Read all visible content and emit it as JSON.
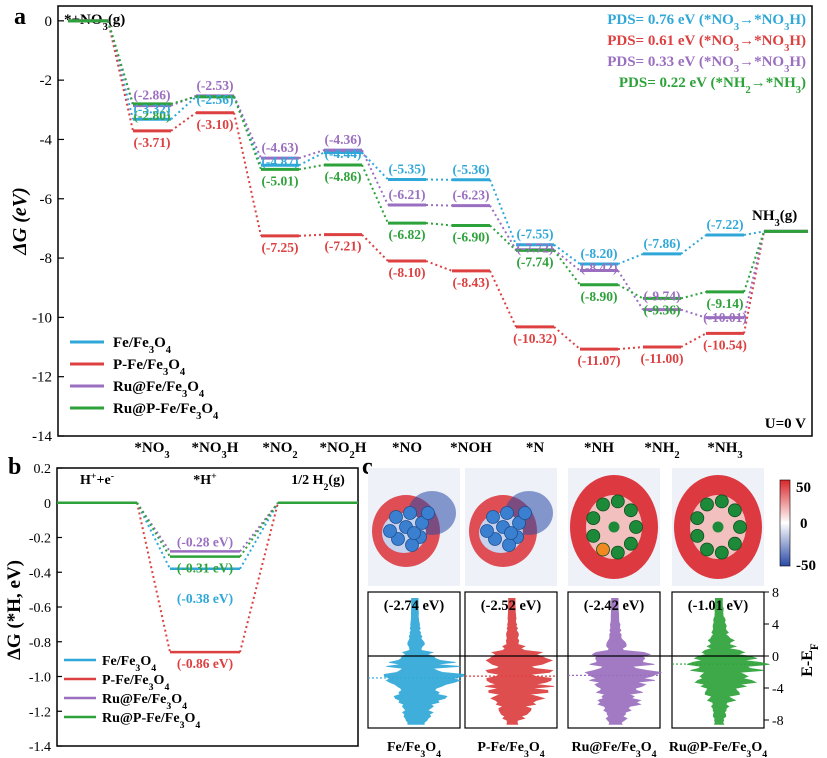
{
  "colors": {
    "fe": "#2fa8d9",
    "pfe": "#dd4040",
    "ru": "#9b6fc0",
    "rup": "#2ea23a",
    "axis": "#000000",
    "map_red": "#d9262b",
    "map_blue": "#2b4aa6",
    "bead_blue": "#3b7fd0",
    "bead_green": "#1d8a3a",
    "bead_orange": "#f08a20"
  },
  "panel_labels": {
    "a": "a",
    "b": "b",
    "c": "c"
  },
  "chart_data": [
    {
      "id": "panel-a",
      "type": "line",
      "title": "",
      "ylabel": "ΔG (eV)",
      "ylim": [
        -14,
        0.5
      ],
      "yticks": [
        0,
        -2,
        -4,
        -6,
        -8,
        -10,
        -12,
        -14
      ],
      "categories": [
        "*+NO3(g)",
        "*NO3",
        "*NO3H",
        "*NO2",
        "*NO2H",
        "*NO",
        "*NOH",
        "*N",
        "*NH",
        "*NH2",
        "*NH3",
        "NH3(g)"
      ],
      "category_labels": [
        "*NO₃",
        "*NO₃H",
        "*NO₂",
        "*NO₂H",
        "*NO",
        "*NOH",
        "*N",
        "*NH",
        "*NH₂",
        "*NH₃"
      ],
      "start_label": "*+NO₃(g)",
      "end_label": "NH₃(g)",
      "condition": "U=0 V",
      "pds": [
        {
          "series": "fe",
          "text": "PDS= 0.76 eV (*NO₃→*NO₃H)"
        },
        {
          "series": "pfe",
          "text": "PDS= 0.61 eV (*NO₃→*NO₃H)"
        },
        {
          "series": "ru",
          "text": "PDS= 0.33 eV (*NO₃→*NO₃H)"
        },
        {
          "series": "rup",
          "text": "PDS= 0.22 eV (*NH₂→*NH₃)"
        }
      ],
      "legend_position": "bottom-left",
      "series": [
        {
          "key": "fe",
          "name": "Fe/Fe₃O₄",
          "values": [
            0,
            -3.32,
            -2.56,
            -4.87,
            -4.44,
            -5.35,
            -5.36,
            -7.55,
            -8.2,
            -7.86,
            -7.22,
            -7.1
          ]
        },
        {
          "key": "pfe",
          "name": "P-Fe/Fe₃O₄",
          "values": [
            0,
            -3.71,
            -3.1,
            -7.25,
            -7.21,
            -8.1,
            -8.43,
            -10.32,
            -11.07,
            -11.0,
            -10.54,
            -7.1
          ]
        },
        {
          "key": "ru",
          "name": "Ru@Fe/Fe₃O₄",
          "values": [
            0,
            -2.86,
            -2.53,
            -4.63,
            -4.36,
            -6.21,
            -6.23,
            -7.72,
            -8.42,
            -9.74,
            -10.01,
            -7.1
          ]
        },
        {
          "key": "rup",
          "name": "Ru@P-Fe/Fe₃O₄",
          "values": [
            0,
            -2.8,
            -2.56,
            -5.01,
            -4.86,
            -6.82,
            -6.9,
            -7.74,
            -8.9,
            -9.36,
            -9.14,
            -7.1
          ]
        }
      ],
      "value_labels": [
        {
          "series": "rup",
          "index": 1,
          "text": "(-2.80)"
        },
        {
          "series": "ru",
          "index": 1,
          "text": "(-2.86)"
        },
        {
          "series": "fe",
          "index": 1,
          "text": "(-3.32)"
        },
        {
          "series": "pfe",
          "index": 1,
          "text": "(-3.71)"
        },
        {
          "series": "ru",
          "index": 2,
          "text": "(-2.53)"
        },
        {
          "series": "fe",
          "index": 2,
          "text": "(-2.56)"
        },
        {
          "series": "pfe",
          "index": 2,
          "text": "(-3.10)"
        },
        {
          "series": "ru",
          "index": 3,
          "text": "(-4.63)"
        },
        {
          "series": "fe",
          "index": 3,
          "text": "(-4.87)"
        },
        {
          "series": "rup",
          "index": 3,
          "text": "(-5.01)"
        },
        {
          "series": "pfe",
          "index": 3,
          "text": "(-7.25)"
        },
        {
          "series": "ru",
          "index": 4,
          "text": "(-4.36)"
        },
        {
          "series": "fe",
          "index": 4,
          "text": "(-4.44)"
        },
        {
          "series": "rup",
          "index": 4,
          "text": "(-4.86)"
        },
        {
          "series": "pfe",
          "index": 4,
          "text": "(-7.21)"
        },
        {
          "series": "fe",
          "index": 5,
          "text": "(-5.35)"
        },
        {
          "series": "ru",
          "index": 5,
          "text": "(-6.21)"
        },
        {
          "series": "rup",
          "index": 5,
          "text": "(-6.82)"
        },
        {
          "series": "pfe",
          "index": 5,
          "text": "(-8.10)"
        },
        {
          "series": "fe",
          "index": 6,
          "text": "(-5.36)"
        },
        {
          "series": "ru",
          "index": 6,
          "text": "(-6.23)"
        },
        {
          "series": "rup",
          "index": 6,
          "text": "(-6.90)"
        },
        {
          "series": "pfe",
          "index": 6,
          "text": "(-8.43)"
        },
        {
          "series": "fe",
          "index": 7,
          "text": "(-7.55)"
        },
        {
          "series": "ru",
          "index": 7,
          "text": "(-7.72)"
        },
        {
          "series": "rup",
          "index": 7,
          "text": "(-7.74)"
        },
        {
          "series": "pfe",
          "index": 7,
          "text": "(-10.32)"
        },
        {
          "series": "fe",
          "index": 8,
          "text": "(-8.20)"
        },
        {
          "series": "ru",
          "index": 8,
          "text": "(-8.42)"
        },
        {
          "series": "rup",
          "index": 8,
          "text": "(-8.90)"
        },
        {
          "series": "pfe",
          "index": 8,
          "text": "(-11.07)"
        },
        {
          "series": "fe",
          "index": 9,
          "text": "(-7.86)"
        },
        {
          "series": "rup",
          "index": 9,
          "text": "(-9.36)"
        },
        {
          "series": "ru",
          "index": 9,
          "text": "(-9.74)"
        },
        {
          "series": "pfe",
          "index": 9,
          "text": "(-11.00)"
        },
        {
          "series": "fe",
          "index": 10,
          "text": "(-7.22)"
        },
        {
          "series": "rup",
          "index": 10,
          "text": "(-9.14)"
        },
        {
          "series": "ru",
          "index": 10,
          "text": "(-10.01)"
        },
        {
          "series": "pfe",
          "index": 10,
          "text": "(-10.54)"
        }
      ]
    },
    {
      "id": "panel-b",
      "type": "line",
      "ylabel": "ΔG (*H, eV)",
      "ylim": [
        -1.4,
        0.2
      ],
      "yticks": [
        0.2,
        0,
        -0.2,
        -0.4,
        -0.6,
        -0.8,
        -1.0,
        -1.2,
        -1.4
      ],
      "ytick_labels": [
        "0.2",
        "0",
        "-0.2",
        "-0.4",
        "-0.6",
        "-0.8",
        "-1.0",
        "-1.2",
        "-1.4"
      ],
      "categories": [
        "H⁺+e⁻",
        "*H⁺",
        "1/2 H₂(g)"
      ],
      "legend_position": "bottom-left",
      "series": [
        {
          "key": "fe",
          "name": "Fe/Fe₃O₄",
          "values": [
            0,
            -0.38,
            0
          ]
        },
        {
          "key": "pfe",
          "name": "P-Fe/Fe₃O₄",
          "values": [
            0,
            -0.86,
            0
          ]
        },
        {
          "key": "ru",
          "name": "Ru@Fe/Fe₃O₄",
          "values": [
            0,
            -0.28,
            0
          ]
        },
        {
          "key": "rup",
          "name": "Ru@P-Fe/Fe₃O₄",
          "values": [
            0,
            -0.31,
            0
          ]
        }
      ],
      "value_labels": [
        {
          "series": "ru",
          "text": "(-0.28 eV)"
        },
        {
          "series": "rup",
          "text": "(-0.31 eV)"
        },
        {
          "series": "fe",
          "text": "(-0.38 eV)"
        },
        {
          "series": "pfe",
          "text": "(-0.86 eV)"
        }
      ]
    },
    {
      "id": "panel-c",
      "type": "other",
      "colorbar": {
        "ticks": [
          "50",
          "0",
          "-50"
        ]
      },
      "dos": {
        "ylabel": "E-E_F",
        "ylim": [
          -9,
          8
        ],
        "yticks": [
          8,
          4,
          0,
          -4,
          -8
        ],
        "ytick_labels": [
          "8",
          "4",
          "0",
          "-4",
          "-8"
        ]
      },
      "materials": [
        {
          "key": "fe",
          "name": "Fe/Fe₃O₄",
          "center": "(-2.74 eV)",
          "center_value": -2.74
        },
        {
          "key": "pfe",
          "name": "P-Fe/Fe₃O₄",
          "center": "(-2.52 eV)",
          "center_value": -2.52
        },
        {
          "key": "ru",
          "name": "Ru@Fe/Fe₃O₄",
          "center": "(-2.42 eV)",
          "center_value": -2.42
        },
        {
          "key": "rup",
          "name": "Ru@P-Fe/Fe₃O₄",
          "center": "(-1.01 eV)",
          "center_value": -1.01
        }
      ]
    }
  ]
}
